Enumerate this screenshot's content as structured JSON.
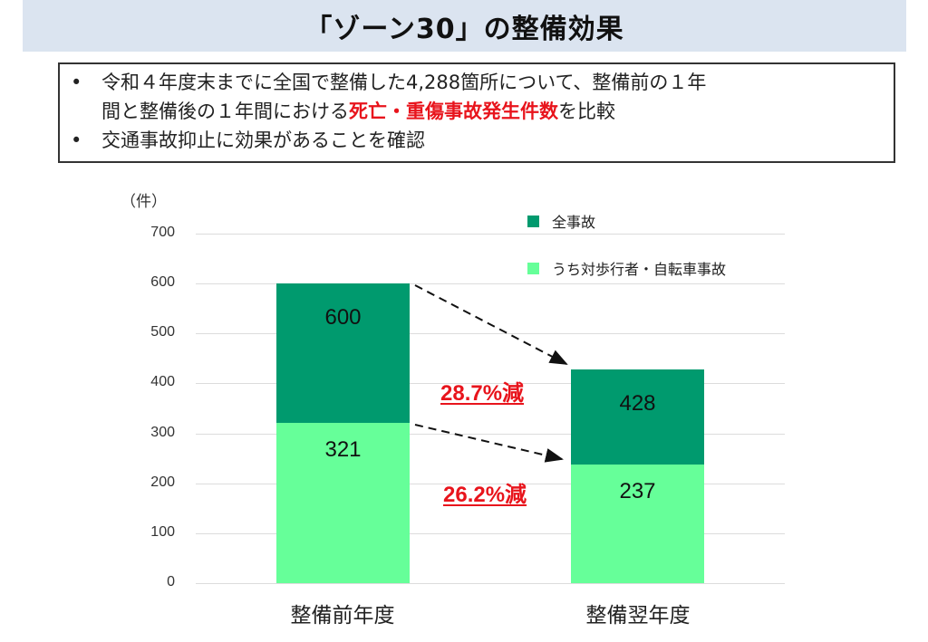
{
  "header": {
    "title": "「ゾーン30」の整備効果"
  },
  "summary": {
    "bullets": [
      {
        "dot": "•",
        "parts": [
          {
            "text": "令和４年度末までに全国で整備した4,288箇所について、整備前の１年"
          },
          {
            "text": "間と整備後の１年間における"
          },
          {
            "text": "死亡・重傷事故発生件数",
            "highlight": true
          },
          {
            "text": "を比較"
          }
        ]
      },
      {
        "dot": "•",
        "parts": [
          {
            "text": "交通事故抑止に効果があることを確認"
          }
        ]
      }
    ]
  },
  "colors": {
    "title_band": "#dbe4f0",
    "total_accidents": "#009a6e",
    "pedestrian_bicycle": "#66ff99",
    "highlight_red": "#e8141c"
  },
  "chart_data": {
    "type": "bar",
    "stacked": false,
    "overlay": true,
    "title": "",
    "unit_label": "（件）",
    "xlabel": "",
    "ylabel": "（件）",
    "ylim": [
      0,
      700
    ],
    "yticks": [
      0,
      100,
      200,
      300,
      400,
      500,
      600,
      700
    ],
    "grid": true,
    "legend_position": "top-right",
    "categories": [
      "整備前年度",
      "整備翌年度"
    ],
    "series": [
      {
        "name": "全事故",
        "color": "#009a6e",
        "values": [
          600,
          428
        ]
      },
      {
        "name": "うち対歩行者・自転車事故",
        "color": "#66ff99",
        "values": [
          321,
          237
        ]
      }
    ],
    "annotations": [
      {
        "text": "28.7%減",
        "series": "全事故",
        "from": 600,
        "to": 428
      },
      {
        "text": "26.2%減",
        "series": "うち対歩行者・自転車事故",
        "from": 321,
        "to": 237
      }
    ]
  }
}
